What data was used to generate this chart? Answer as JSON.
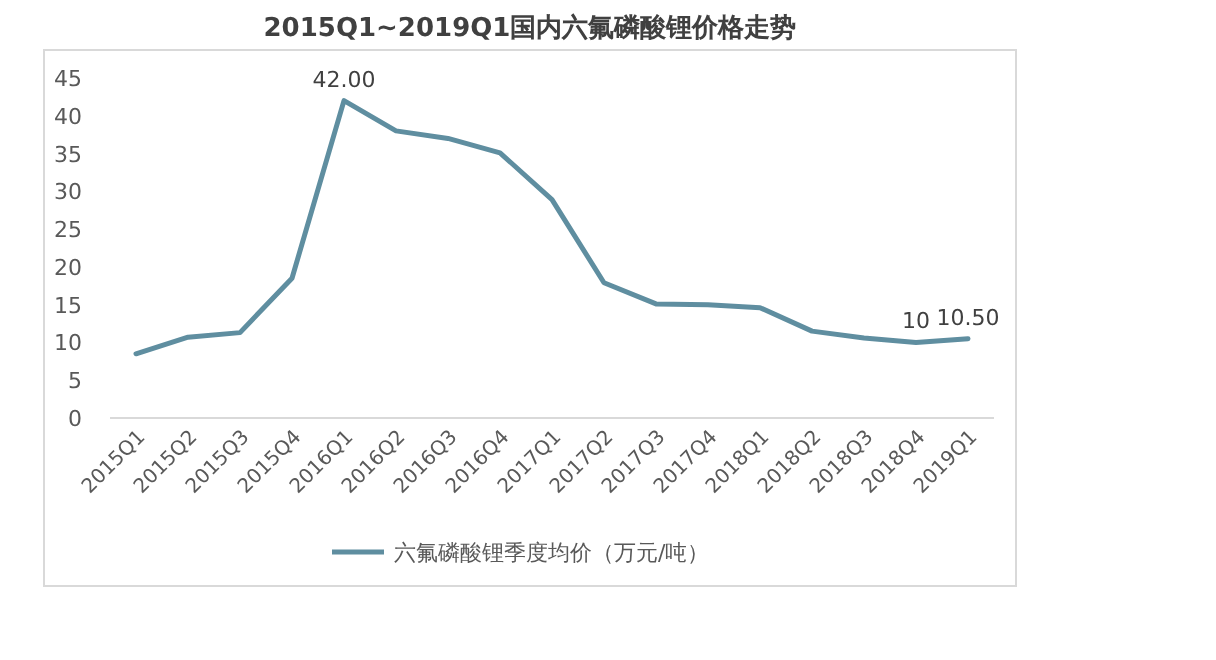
{
  "chart_data": {
    "type": "line",
    "title": "2015Q1~2019Q1国内六氟磷酸锂价格走势",
    "categories": [
      "2015Q1",
      "2015Q2",
      "2015Q3",
      "2015Q4",
      "2016Q1",
      "2016Q2",
      "2016Q3",
      "2016Q4",
      "2017Q1",
      "2017Q2",
      "2017Q3",
      "2017Q4",
      "2018Q1",
      "2018Q2",
      "2018Q3",
      "2018Q4",
      "2019Q1"
    ],
    "series": [
      {
        "name": "六氟磷酸锂季度均价（万元/吨）",
        "color": "#5f8ea0",
        "values": [
          8.5,
          10.7,
          11.3,
          18.5,
          42,
          38,
          37,
          35.1,
          28.9,
          17.9,
          15.1,
          15,
          14.6,
          11.5,
          10.6,
          10,
          10.5
        ],
        "value_labels": [
          null,
          null,
          null,
          null,
          "42.00",
          null,
          null,
          null,
          null,
          null,
          null,
          null,
          null,
          null,
          null,
          "10",
          "10.50"
        ]
      }
    ],
    "ylim": [
      0,
      45
    ],
    "yticks": [
      0,
      5,
      10,
      15,
      20,
      25,
      30,
      35,
      40,
      45
    ],
    "legend": "bottom",
    "grid": false,
    "marker": "none",
    "line_style": "solid"
  }
}
